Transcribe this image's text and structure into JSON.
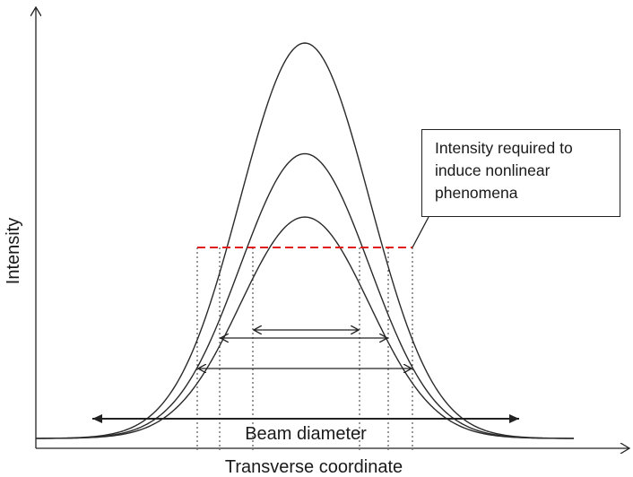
{
  "axes": {
    "x_label": "Transverse coordinate",
    "y_label": "Intensity"
  },
  "callout": {
    "lines": [
      "Intensity required to",
      "induce nonlinear",
      "phenomena"
    ]
  },
  "beam_diameter_label": "Beam diameter",
  "colors": {
    "curve": "#2a2a2a",
    "threshold_line": "#e01b1b",
    "axis": "#222222"
  },
  "curves": [
    {
      "peak_relative": 1.0
    },
    {
      "peak_relative": 0.72
    },
    {
      "peak_relative": 0.56
    }
  ]
}
